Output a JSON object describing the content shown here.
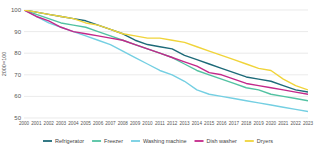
{
  "chart_data": {
    "type": "line",
    "y_label": "2000=100",
    "categories": [
      "2000",
      "2001",
      "2002",
      "2003",
      "2004",
      "2005",
      "2006",
      "2007",
      "2008",
      "2009",
      "2010",
      "2011",
      "2012",
      "2013",
      "2014",
      "2015",
      "2016",
      "2017",
      "2018",
      "2019",
      "2020",
      "2021",
      "2022",
      "2023"
    ],
    "series": [
      {
        "name": "Refrigerator",
        "color": "#1d6a78",
        "values": [
          100,
          99,
          98,
          97,
          96,
          95,
          93,
          91,
          89,
          86,
          84,
          83,
          82,
          79,
          77,
          75,
          73,
          71,
          69,
          68,
          67,
          65,
          63,
          62
        ]
      },
      {
        "name": "Freezer",
        "color": "#52c2a2",
        "values": [
          100,
          98,
          96,
          94,
          93,
          92,
          90,
          88,
          86,
          84,
          82,
          80,
          78,
          75,
          72,
          70,
          68,
          66,
          64,
          63,
          61,
          60,
          59,
          58
        ]
      },
      {
        "name": "Washing machine",
        "color": "#74cfe2",
        "values": [
          100,
          97,
          94,
          92,
          90,
          88,
          86,
          84,
          81,
          78,
          75,
          72,
          70,
          67,
          63,
          61,
          60,
          59,
          58,
          57,
          56,
          55,
          54,
          53
        ]
      },
      {
        "name": "Dish washer",
        "color": "#c3288a",
        "values": [
          100,
          97,
          95,
          92,
          90,
          89,
          88,
          87,
          86,
          84,
          82,
          80,
          78,
          76,
          74,
          71,
          70,
          68,
          66,
          65,
          64,
          63,
          62,
          61
        ]
      },
      {
        "name": "Dryers",
        "color": "#f0d43a",
        "values": [
          100,
          99,
          98,
          97,
          96,
          94,
          93,
          91,
          89,
          88,
          87,
          87,
          86,
          85,
          83,
          81,
          79,
          77,
          75,
          73,
          72,
          68,
          65,
          63
        ]
      }
    ],
    "ylim": [
      50,
      100
    ],
    "yticks": [
      50,
      60,
      70,
      80,
      90,
      100
    ],
    "grid": true,
    "legend": "bottom"
  }
}
